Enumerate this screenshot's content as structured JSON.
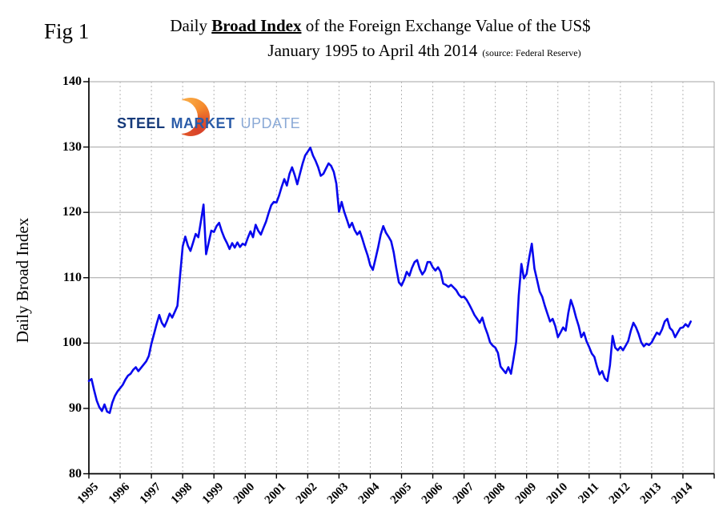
{
  "figure": {
    "label": "Fig 1"
  },
  "title": {
    "prefix": "Daily ",
    "emphasis": "Broad Index",
    "suffix": " of the Foreign Exchange Value of the US$",
    "line2": "January 1995 to April 4th 2014",
    "source_note": "(source: Federal Reserve)"
  },
  "logo": {
    "word1": "STEEL",
    "word2": "MARKET",
    "word3": "UPDATE",
    "colors": {
      "word1": "#163a7a",
      "word2": "#2b5ca8",
      "word3": "#8aa9d6",
      "crescent_orange": "#f58a2c",
      "crescent_red": "#d8422a"
    }
  },
  "chart_data": {
    "type": "line",
    "title": "Daily Broad Index of the Foreign Exchange Value of the US$",
    "subtitle": "January 1995 to April 4th 2014",
    "xlabel": "",
    "ylabel": "Daily Broad Index",
    "ylim": [
      80,
      140
    ],
    "yticks": [
      80,
      90,
      100,
      110,
      120,
      130,
      140
    ],
    "xlim": [
      1995,
      2015
    ],
    "xticks": [
      1995,
      1996,
      1997,
      1998,
      1999,
      2000,
      2001,
      2002,
      2003,
      2004,
      2005,
      2006,
      2007,
      2008,
      2009,
      2010,
      2011,
      2012,
      2013,
      2014
    ],
    "grid": {
      "horizontal": "solid-gray",
      "vertical": "dashed-gray"
    },
    "legend": "none",
    "x_unit": "decimal_year",
    "sampling": "monthly estimates read from daily curve",
    "x_start": 1995.0,
    "x_step": 0.083333,
    "series": [
      {
        "name": "Daily Broad Index of the Foreign Exchange Value of the US$",
        "color": "#0808ee",
        "y": [
          94.2,
          94.5,
          92.8,
          91.2,
          90.2,
          89.6,
          90.6,
          89.5,
          89.3,
          90.9,
          91.9,
          92.6,
          93.1,
          93.6,
          94.4,
          95.0,
          95.3,
          95.9,
          96.3,
          95.7,
          96.2,
          96.7,
          97.2,
          98.0,
          99.9,
          101.4,
          102.9,
          104.3,
          103.1,
          102.5,
          103.4,
          104.5,
          103.9,
          104.8,
          105.7,
          110.3,
          114.8,
          116.3,
          114.9,
          114.1,
          115.4,
          116.7,
          116.2,
          118.6,
          121.2,
          113.6,
          115.4,
          117.2,
          117.0,
          117.9,
          118.4,
          117.1,
          116.1,
          115.3,
          114.4,
          115.3,
          114.6,
          115.4,
          114.7,
          115.2,
          115.0,
          116.1,
          117.1,
          116.2,
          118.1,
          117.2,
          116.6,
          117.6,
          118.6,
          119.9,
          121.1,
          121.6,
          121.5,
          122.6,
          123.9,
          125.1,
          124.1,
          125.9,
          126.9,
          125.7,
          124.3,
          125.9,
          127.4,
          128.7,
          129.3,
          129.9,
          128.7,
          127.9,
          126.9,
          125.6,
          125.9,
          126.7,
          127.5,
          127.1,
          126.2,
          124.4,
          120.1,
          121.6,
          120.1,
          118.9,
          117.7,
          118.4,
          117.3,
          116.6,
          117.1,
          115.9,
          114.6,
          113.4,
          111.9,
          111.2,
          112.9,
          114.6,
          116.6,
          117.9,
          116.9,
          116.3,
          115.6,
          113.9,
          111.4,
          109.3,
          108.8,
          109.7,
          110.9,
          110.3,
          111.5,
          112.4,
          112.7,
          111.3,
          110.5,
          111.1,
          112.4,
          112.4,
          111.6,
          111.1,
          111.6,
          110.9,
          109.1,
          108.9,
          108.6,
          108.9,
          108.5,
          108.1,
          107.4,
          107.0,
          107.1,
          106.6,
          105.9,
          105.1,
          104.3,
          103.7,
          103.1,
          103.9,
          102.5,
          101.4,
          100.1,
          99.6,
          99.3,
          98.5,
          96.4,
          95.9,
          95.4,
          96.3,
          95.3,
          97.6,
          100.2,
          107.3,
          112.1,
          109.9,
          110.6,
          113.1,
          115.2,
          111.4,
          109.7,
          107.9,
          107.1,
          105.7,
          104.5,
          103.3,
          103.7,
          102.6,
          100.9,
          101.6,
          102.4,
          101.9,
          104.6,
          106.6,
          105.4,
          103.9,
          102.6,
          100.9,
          101.6,
          100.3,
          99.4,
          98.4,
          97.9,
          96.4,
          95.2,
          95.7,
          94.6,
          94.2,
          96.6,
          101.1,
          99.3,
          98.9,
          99.4,
          98.9,
          99.6,
          100.3,
          101.9,
          103.1,
          102.4,
          101.4,
          100.1,
          99.5,
          99.9,
          99.7,
          100.1,
          100.9,
          101.6,
          101.3,
          102.1,
          103.3,
          103.7,
          102.3,
          101.9,
          100.9,
          101.6,
          102.3,
          102.4,
          102.9,
          102.5,
          103.3
        ]
      }
    ]
  }
}
